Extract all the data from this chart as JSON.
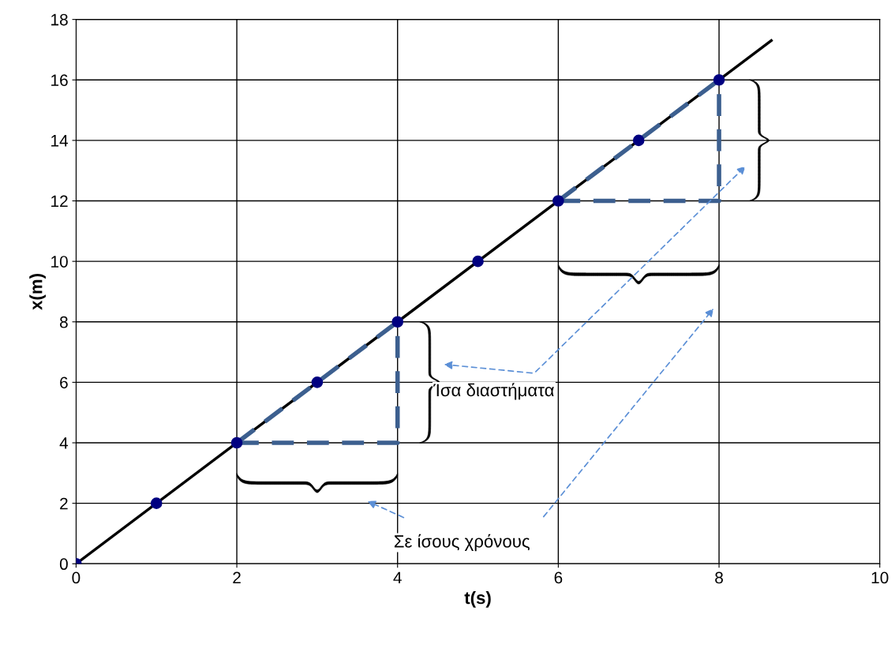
{
  "chart_data": {
    "type": "scatter",
    "xlabel": "t(s)",
    "ylabel": "x(m)",
    "xlim": [
      0,
      10
    ],
    "xticks": [
      0,
      2,
      4,
      6,
      8,
      10
    ],
    "ylim": [
      0,
      18
    ],
    "yticks": [
      0,
      2,
      4,
      6,
      8,
      10,
      12,
      14,
      16,
      18
    ],
    "grid": true,
    "marker": "circle",
    "series": [
      {
        "type": "line",
        "color": "#000000",
        "line_style": "solid",
        "marker": "none",
        "x": [
          0,
          8.65
        ],
        "values": [
          0,
          17.3
        ]
      },
      {
        "type": "line",
        "color": "#3c5f8f",
        "line_style": "dashed",
        "marker": "none",
        "x": [
          2,
          4,
          4
        ],
        "values": [
          4,
          4,
          8
        ]
      },
      {
        "type": "line",
        "color": "#3c5f8f",
        "line_style": "dashed",
        "marker": "none",
        "x": [
          2,
          4
        ],
        "values": [
          4,
          8
        ]
      },
      {
        "type": "line",
        "color": "#3c5f8f",
        "line_style": "dashed",
        "marker": "none",
        "x": [
          6,
          8,
          8
        ],
        "values": [
          12,
          12,
          16
        ]
      },
      {
        "type": "line",
        "color": "#3c5f8f",
        "line_style": "dashed",
        "marker": "none",
        "x": [
          6,
          8
        ],
        "values": [
          12,
          16
        ]
      },
      {
        "color": "#000080",
        "x": [
          0,
          1,
          2,
          3,
          4,
          5,
          6,
          7,
          8
        ],
        "values": [
          0,
          2,
          4,
          6,
          8,
          10,
          12,
          14,
          16
        ]
      }
    ],
    "annotations": [
      "Ίσα διαστήματα",
      "Σε ίσους χρόνους"
    ]
  }
}
